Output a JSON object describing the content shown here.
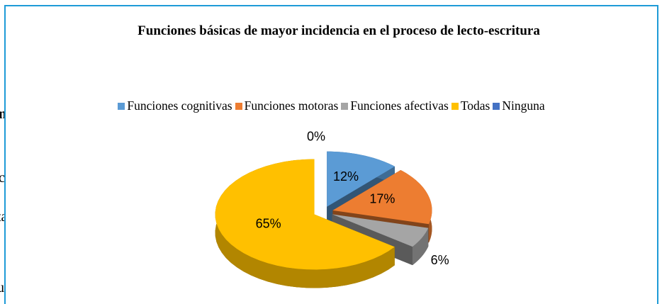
{
  "background_text": [
    "na",
    "c",
    "ta",
    "u"
  ],
  "chart_data": {
    "type": "pie",
    "title": "Funciones básicas de mayor incidencia  en el proceso de lecto-escritura",
    "categories": [
      "Funciones cognitivas",
      "Funciones motoras",
      "Funciones afectivas",
      "Todas",
      "Ninguna"
    ],
    "values": [
      12,
      17,
      6,
      65,
      0
    ],
    "value_labels": [
      "12%",
      "17%",
      "6%",
      "65%",
      "0%"
    ],
    "colors": [
      "#5b9bd5",
      "#ed7d31",
      "#a5a5a5",
      "#ffc000",
      "#4472c4"
    ],
    "legend": "top",
    "exploded": true,
    "3d": true
  }
}
